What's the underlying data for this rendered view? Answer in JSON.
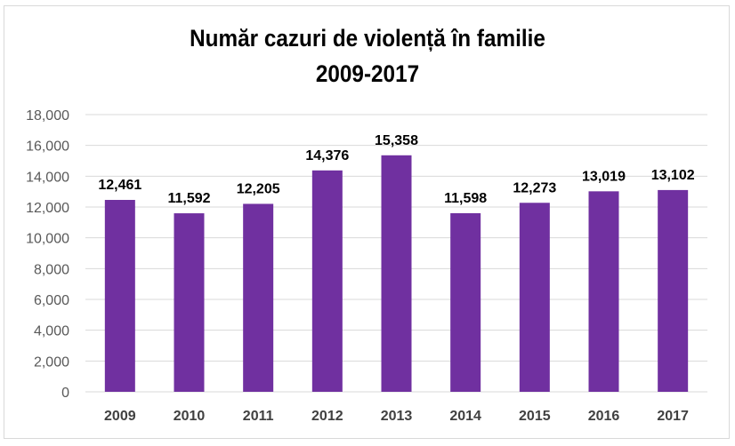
{
  "chart_data": {
    "type": "bar",
    "title": "Număr cazuri de violență în familie",
    "subtitle": "2009-2017",
    "categories": [
      "2009",
      "2010",
      "2011",
      "2012",
      "2013",
      "2014",
      "2015",
      "2016",
      "2017"
    ],
    "values": [
      12461,
      11592,
      12205,
      14376,
      15358,
      11598,
      12273,
      13019,
      13102
    ],
    "data_labels": [
      "12,461",
      "11,592",
      "12,205",
      "14,376",
      "15,358",
      "11,598",
      "12,273",
      "13,019",
      "13,102"
    ],
    "y_ticks": [
      "0",
      "2,000",
      "4,000",
      "6,000",
      "8,000",
      "10,000",
      "12,000",
      "14,000",
      "16,000",
      "18,000"
    ],
    "ylim": [
      0,
      18000
    ],
    "xlabel": "",
    "ylabel": "",
    "grid": true,
    "legend": "none",
    "bar_color": "#7030a0"
  }
}
